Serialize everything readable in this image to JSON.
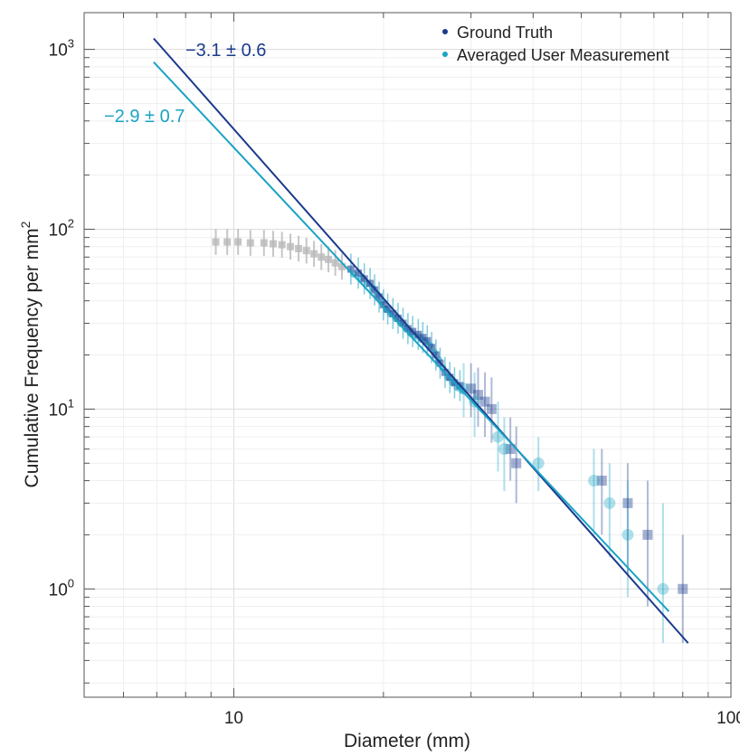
{
  "chart_data": {
    "type": "scatter",
    "xlabel": "Diameter (mm)",
    "ylabel_main": "Cumulative Frequency per mm",
    "ylabel_sup": "2",
    "xscale": "log",
    "yscale": "log",
    "xlim": [
      5,
      100
    ],
    "ylim": [
      0.25,
      1600
    ],
    "x_tick_labels": [
      {
        "value": 10,
        "label": "10"
      },
      {
        "value": 100,
        "label": "100"
      }
    ],
    "y_tick_labels": [
      {
        "value": 1,
        "base": "10",
        "exp": "0"
      },
      {
        "value": 10,
        "base": "10",
        "exp": "1"
      },
      {
        "value": 100,
        "base": "10",
        "exp": "2"
      },
      {
        "value": 1000,
        "base": "10",
        "exp": "3"
      }
    ],
    "grid": true,
    "legend_position": "top-right",
    "colors": {
      "ground_truth": "#1a3a8c",
      "averaged": "#1aa3c4",
      "excluded": "#b8b8b8"
    },
    "fit_lines": [
      {
        "series": "Ground Truth",
        "label": "−3.1 ± 0.6",
        "x": [
          6.9,
          82
        ],
        "y": [
          1150,
          0.5
        ]
      },
      {
        "series": "Averaged User Measurement",
        "label": "−2.9 ± 0.7",
        "x": [
          6.9,
          75
        ],
        "y": [
          850,
          0.75
        ]
      }
    ],
    "series": [
      {
        "name": "Ground Truth",
        "marker": "square",
        "points": [
          {
            "x": 30,
            "y": 13,
            "lo": 9,
            "hi": 18
          },
          {
            "x": 31,
            "y": 12,
            "lo": 8,
            "hi": 17
          },
          {
            "x": 32,
            "y": 11,
            "lo": 7,
            "hi": 16
          },
          {
            "x": 33,
            "y": 10,
            "lo": 6.5,
            "hi": 15
          },
          {
            "x": 36,
            "y": 6,
            "lo": 4,
            "hi": 9
          },
          {
            "x": 37,
            "y": 5,
            "lo": 3,
            "hi": 8
          },
          {
            "x": 55,
            "y": 4,
            "lo": 2,
            "hi": 6
          },
          {
            "x": 62,
            "y": 3,
            "lo": 1.2,
            "hi": 5
          },
          {
            "x": 68,
            "y": 2,
            "lo": 0.8,
            "hi": 4
          },
          {
            "x": 80,
            "y": 1,
            "lo": 0.5,
            "hi": 2
          }
        ]
      },
      {
        "name": "Averaged User Measurement",
        "marker": "circle",
        "points": [
          {
            "x": 29,
            "y": 13,
            "lo": 9,
            "hi": 18
          },
          {
            "x": 30.5,
            "y": 11,
            "lo": 7,
            "hi": 16
          },
          {
            "x": 34,
            "y": 7,
            "lo": 4.5,
            "hi": 11
          },
          {
            "x": 35,
            "y": 6,
            "lo": 3.5,
            "hi": 9
          },
          {
            "x": 41,
            "y": 5,
            "lo": 3.5,
            "hi": 7
          },
          {
            "x": 53,
            "y": 4,
            "lo": 2,
            "hi": 6
          },
          {
            "x": 57,
            "y": 3,
            "lo": 1.5,
            "hi": 5
          },
          {
            "x": 62,
            "y": 2,
            "lo": 0.9,
            "hi": 4
          },
          {
            "x": 73,
            "y": 1,
            "lo": 0.5,
            "hi": 3
          }
        ]
      }
    ],
    "excluded_points": [
      {
        "x": 9.2,
        "y": 85
      },
      {
        "x": 9.7,
        "y": 85
      },
      {
        "x": 10.2,
        "y": 85
      },
      {
        "x": 10.8,
        "y": 84
      },
      {
        "x": 11.5,
        "y": 84
      },
      {
        "x": 12.0,
        "y": 83
      },
      {
        "x": 12.5,
        "y": 82
      },
      {
        "x": 13.0,
        "y": 80
      },
      {
        "x": 13.5,
        "y": 78
      },
      {
        "x": 14.0,
        "y": 76
      },
      {
        "x": 14.5,
        "y": 73
      },
      {
        "x": 15.0,
        "y": 70
      },
      {
        "x": 15.5,
        "y": 68
      },
      {
        "x": 16.0,
        "y": 65
      },
      {
        "x": 16.5,
        "y": 62
      }
    ],
    "dense_cluster": [
      {
        "x": 17.2,
        "y": 60
      },
      {
        "x": 17.8,
        "y": 57
      },
      {
        "x": 18.3,
        "y": 53
      },
      {
        "x": 18.8,
        "y": 50
      },
      {
        "x": 19.2,
        "y": 46
      },
      {
        "x": 19.6,
        "y": 42
      },
      {
        "x": 20.0,
        "y": 38
      },
      {
        "x": 20.4,
        "y": 36
      },
      {
        "x": 20.9,
        "y": 34
      },
      {
        "x": 21.4,
        "y": 32
      },
      {
        "x": 21.9,
        "y": 30
      },
      {
        "x": 22.4,
        "y": 28
      },
      {
        "x": 22.9,
        "y": 27
      },
      {
        "x": 23.5,
        "y": 26
      },
      {
        "x": 24.0,
        "y": 25
      },
      {
        "x": 24.5,
        "y": 24
      },
      {
        "x": 25.0,
        "y": 22
      },
      {
        "x": 25.5,
        "y": 20
      },
      {
        "x": 26.0,
        "y": 18
      },
      {
        "x": 26.6,
        "y": 16
      },
      {
        "x": 27.2,
        "y": 15
      },
      {
        "x": 27.8,
        "y": 14
      },
      {
        "x": 28.5,
        "y": 13.5
      }
    ]
  }
}
